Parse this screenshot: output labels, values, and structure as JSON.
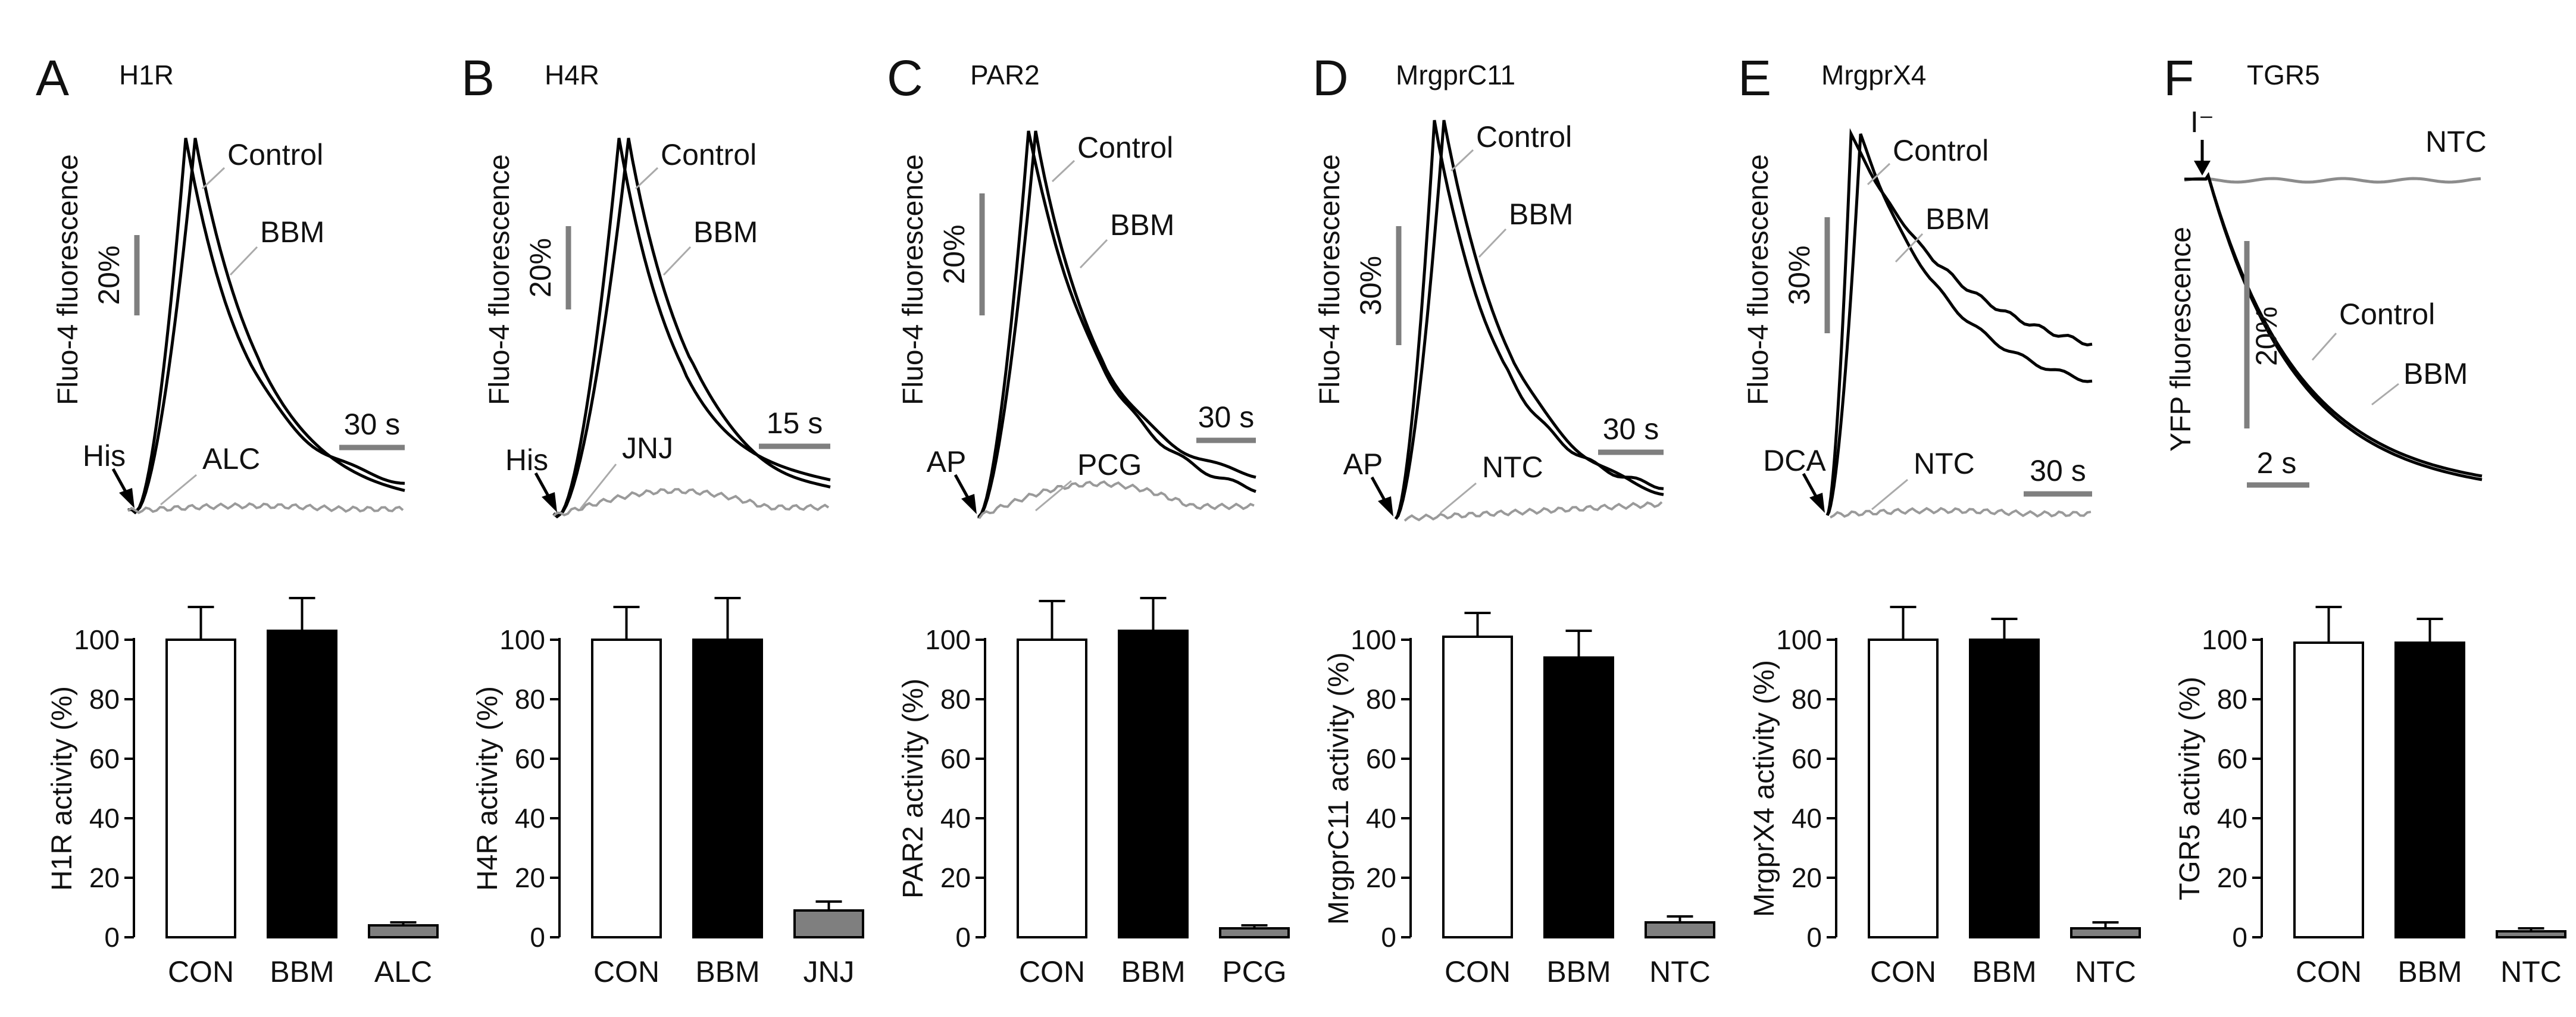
{
  "figure": {
    "panels": [
      {
        "letter": "A",
        "title": "H1R",
        "trace_ylabel": "Fluo-4 fluorescence",
        "yscale": "20%",
        "xscale": "30 s",
        "stimulus": "His",
        "control_label": "Control",
        "bbm_label": "BBM",
        "antagonist_label": "ALC",
        "bar_ylabel": "H1R activity (%)"
      },
      {
        "letter": "B",
        "title": "H4R",
        "trace_ylabel": "Fluo-4 fluorescence",
        "yscale": "20%",
        "xscale": "15 s",
        "stimulus": "His",
        "control_label": "Control",
        "bbm_label": "BBM",
        "antagonist_label": "JNJ",
        "bar_ylabel": "H4R activity (%)"
      },
      {
        "letter": "C",
        "title": "PAR2",
        "trace_ylabel": "Fluo-4 fluorescence",
        "yscale": "20%",
        "xscale": "30 s",
        "stimulus": "AP",
        "control_label": "Control",
        "bbm_label": "BBM",
        "antagonist_label": "PCG",
        "bar_ylabel": "PAR2 activity (%)"
      },
      {
        "letter": "D",
        "title": "MrgprC11",
        "trace_ylabel": "Fluo-4 fluorescence",
        "yscale": "30%",
        "xscale": "30 s",
        "stimulus": "AP",
        "control_label": "Control",
        "bbm_label": "BBM",
        "antagonist_label": "NTC",
        "bar_ylabel": "MrgprC11 activity (%)"
      },
      {
        "letter": "E",
        "title": "MrgprX4",
        "trace_ylabel": "Fluo-4 fluorescence",
        "yscale": "30%",
        "xscale": "30 s",
        "stimulus": "DCA",
        "control_label": "Control",
        "bbm_label": "BBM",
        "antagonist_label": "NTC",
        "bar_ylabel": "MrgprX4 activity (%)"
      },
      {
        "letter": "F",
        "title": "TGR5",
        "trace_ylabel": "YFP fluorescence",
        "yscale": "20%",
        "xscale": "2 s",
        "stimulus": "I⁻",
        "control_label": "Control",
        "bbm_label": "BBM",
        "antagonist_label": "NTC",
        "bar_ylabel": "TGR5 activity (%)"
      }
    ]
  },
  "chart_data": [
    {
      "type": "bar",
      "panel": "A",
      "title": "H1R",
      "ylabel": "H1R activity (%)",
      "ylim": [
        0,
        100
      ],
      "yticks": [
        0,
        20,
        40,
        60,
        80,
        100
      ],
      "categories": [
        "CON",
        "BBM",
        "ALC"
      ],
      "values": [
        100,
        103,
        4
      ],
      "errors": [
        11,
        11,
        1
      ],
      "colors": [
        "#ffffff",
        "#000000",
        "#7f7f7f"
      ]
    },
    {
      "type": "bar",
      "panel": "B",
      "title": "H4R",
      "ylabel": "H4R activity (%)",
      "ylim": [
        0,
        100
      ],
      "yticks": [
        0,
        20,
        40,
        60,
        80,
        100
      ],
      "categories": [
        "CON",
        "BBM",
        "JNJ"
      ],
      "values": [
        100,
        100,
        9
      ],
      "errors": [
        11,
        14,
        3
      ],
      "colors": [
        "#ffffff",
        "#000000",
        "#7f7f7f"
      ]
    },
    {
      "type": "bar",
      "panel": "C",
      "title": "PAR2",
      "ylabel": "PAR2 activity (%)",
      "ylim": [
        0,
        100
      ],
      "yticks": [
        0,
        20,
        40,
        60,
        80,
        100
      ],
      "categories": [
        "CON",
        "BBM",
        "PCG"
      ],
      "values": [
        100,
        103,
        3
      ],
      "errors": [
        13,
        11,
        1
      ],
      "colors": [
        "#ffffff",
        "#000000",
        "#7f7f7f"
      ]
    },
    {
      "type": "bar",
      "panel": "D",
      "title": "MrgprC11",
      "ylabel": "MrgprC11 activity (%)",
      "ylim": [
        0,
        100
      ],
      "yticks": [
        0,
        20,
        40,
        60,
        80,
        100
      ],
      "categories": [
        "CON",
        "BBM",
        "NTC"
      ],
      "values": [
        101,
        94,
        5
      ],
      "errors": [
        8,
        9,
        2
      ],
      "colors": [
        "#ffffff",
        "#000000",
        "#7f7f7f"
      ]
    },
    {
      "type": "bar",
      "panel": "E",
      "title": "MrgprX4",
      "ylabel": "MrgprX4 activity (%)",
      "ylim": [
        0,
        100
      ],
      "yticks": [
        0,
        20,
        40,
        60,
        80,
        100
      ],
      "categories": [
        "CON",
        "BBM",
        "NTC"
      ],
      "values": [
        100,
        100,
        3
      ],
      "errors": [
        11,
        7,
        2
      ],
      "colors": [
        "#ffffff",
        "#000000",
        "#7f7f7f"
      ]
    },
    {
      "type": "bar",
      "panel": "F",
      "title": "TGR5",
      "ylabel": "TGR5 activity (%)",
      "ylim": [
        0,
        100
      ],
      "yticks": [
        0,
        20,
        40,
        60,
        80,
        100
      ],
      "categories": [
        "CON",
        "BBM",
        "NTC"
      ],
      "values": [
        99,
        99,
        2
      ],
      "errors": [
        12,
        8,
        1
      ],
      "colors": [
        "#ffffff",
        "#000000",
        "#7f7f7f"
      ]
    }
  ]
}
